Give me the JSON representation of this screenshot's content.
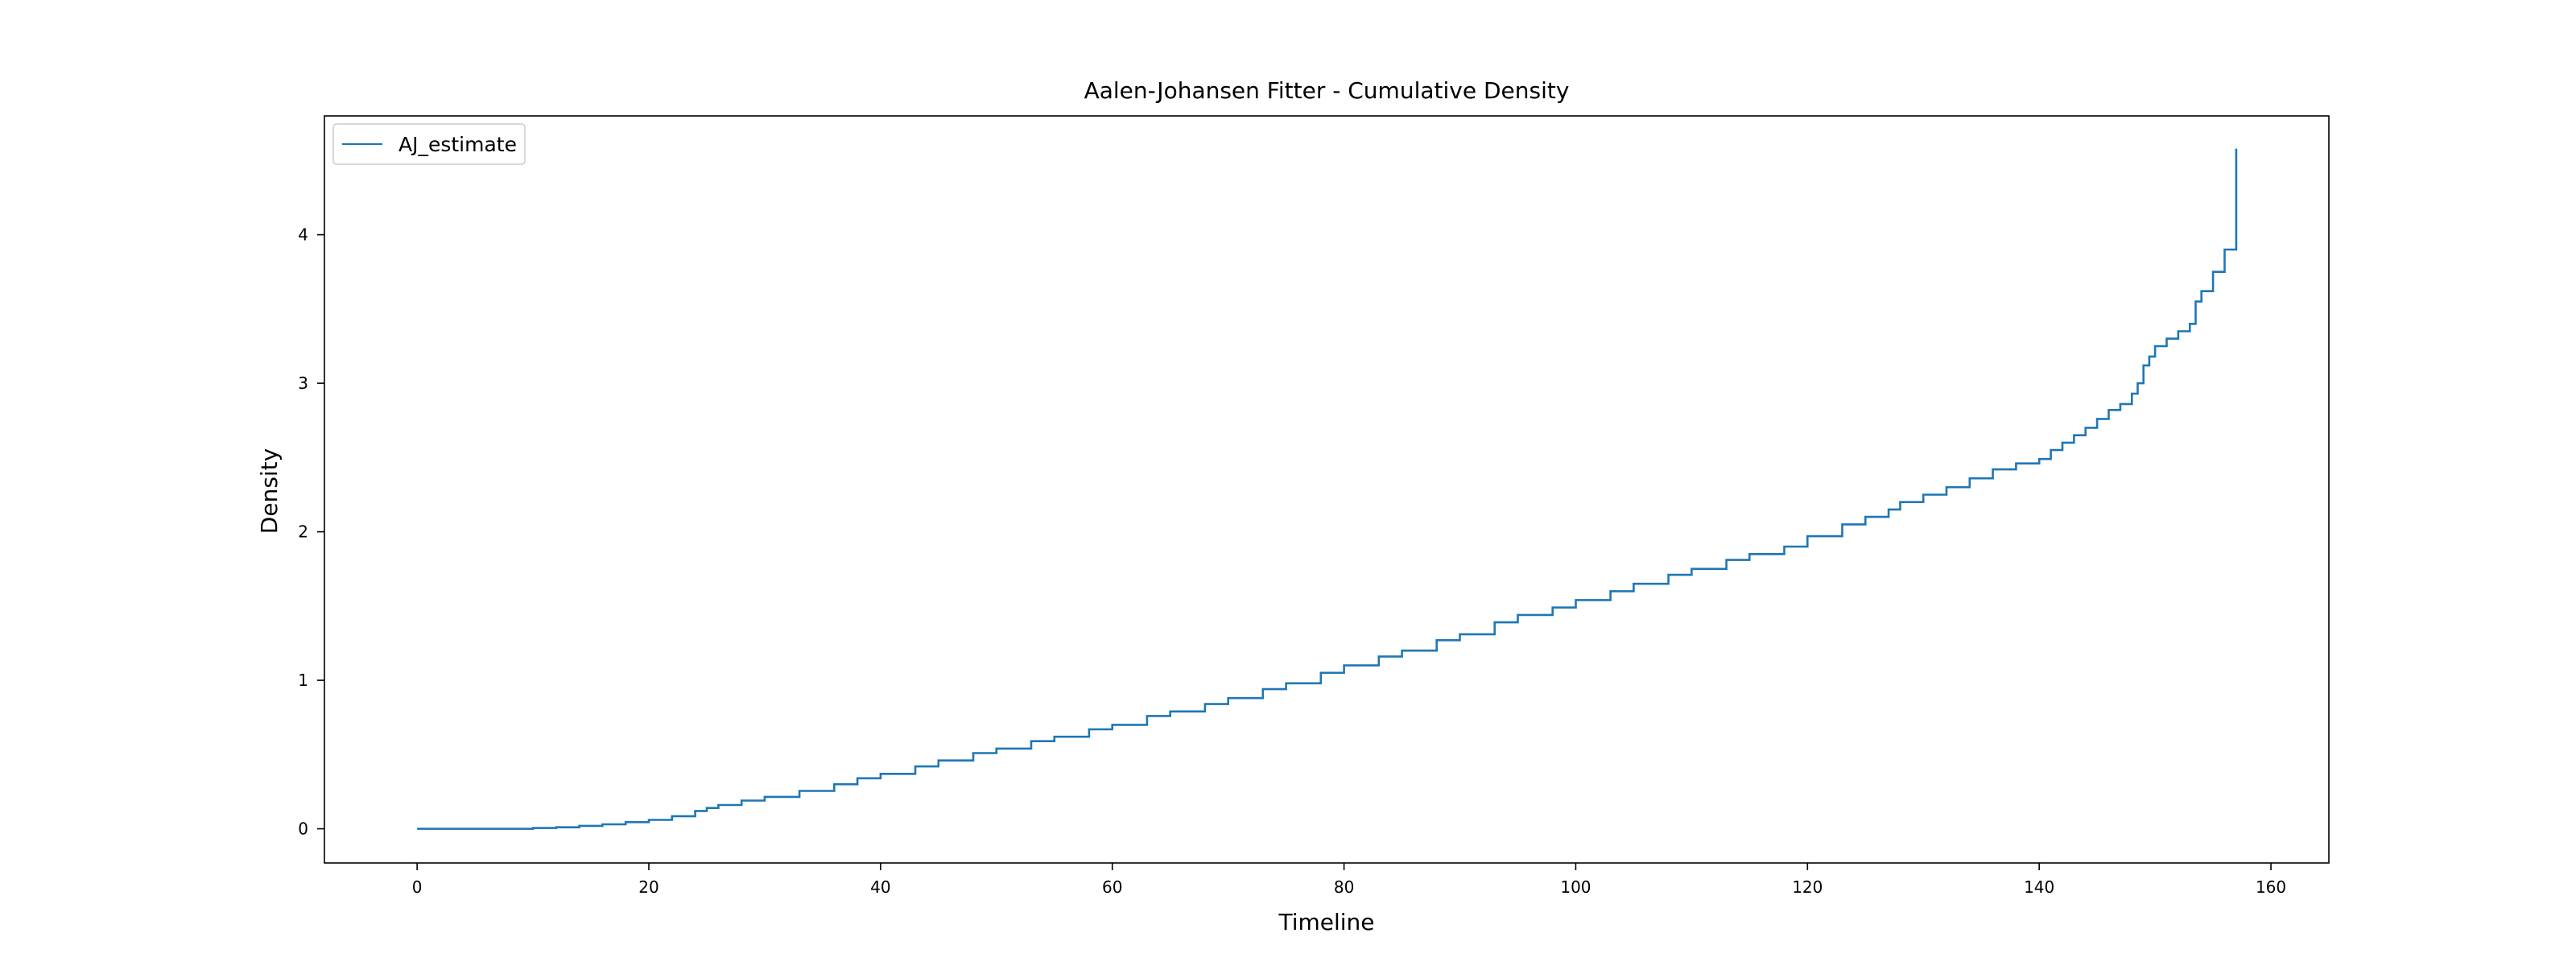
{
  "chart_data": {
    "type": "line",
    "step": true,
    "title": "Aalen-Johansen Fitter - Cumulative Density",
    "xlabel": "Timeline",
    "ylabel": "Density",
    "xlim": [
      -8,
      165
    ],
    "ylim": [
      -0.23,
      4.8
    ],
    "xticks": [
      0,
      20,
      40,
      60,
      80,
      100,
      120,
      140,
      160
    ],
    "yticks": [
      0,
      1,
      2,
      3,
      4
    ],
    "grid": false,
    "legend_position": "top-left",
    "series": [
      {
        "name": "AJ_estimate",
        "color": "#1f77b4",
        "x": [
          0,
          5,
          10,
          12,
          14,
          16,
          18,
          20,
          22,
          24,
          25,
          26,
          28,
          30,
          33,
          36,
          38,
          40,
          43,
          45,
          48,
          50,
          53,
          55,
          58,
          60,
          63,
          65,
          68,
          70,
          73,
          75,
          78,
          80,
          83,
          85,
          88,
          90,
          93,
          95,
          98,
          100,
          103,
          105,
          108,
          110,
          113,
          115,
          118,
          120,
          123,
          125,
          127,
          128,
          130,
          132,
          134,
          136,
          138,
          140,
          141,
          142,
          143,
          144,
          145,
          146,
          147,
          148,
          148.5,
          149,
          149.5,
          150,
          151,
          152,
          153,
          153.5,
          154,
          155,
          156,
          157
        ],
        "y": [
          0,
          0,
          0.005,
          0.01,
          0.02,
          0.03,
          0.045,
          0.06,
          0.085,
          0.12,
          0.14,
          0.16,
          0.19,
          0.215,
          0.255,
          0.3,
          0.34,
          0.37,
          0.42,
          0.46,
          0.51,
          0.54,
          0.59,
          0.62,
          0.67,
          0.7,
          0.76,
          0.79,
          0.84,
          0.88,
          0.94,
          0.98,
          1.05,
          1.1,
          1.16,
          1.2,
          1.27,
          1.31,
          1.39,
          1.44,
          1.49,
          1.54,
          1.6,
          1.65,
          1.71,
          1.75,
          1.81,
          1.85,
          1.9,
          1.97,
          2.05,
          2.1,
          2.15,
          2.2,
          2.25,
          2.3,
          2.36,
          2.42,
          2.46,
          2.49,
          2.55,
          2.6,
          2.65,
          2.7,
          2.76,
          2.82,
          2.86,
          2.93,
          3.0,
          3.12,
          3.18,
          3.25,
          3.3,
          3.35,
          3.4,
          3.55,
          3.62,
          3.75,
          3.9,
          4.12
        ]
      }
    ],
    "final_step": {
      "x": 157,
      "y": 4.58
    }
  }
}
